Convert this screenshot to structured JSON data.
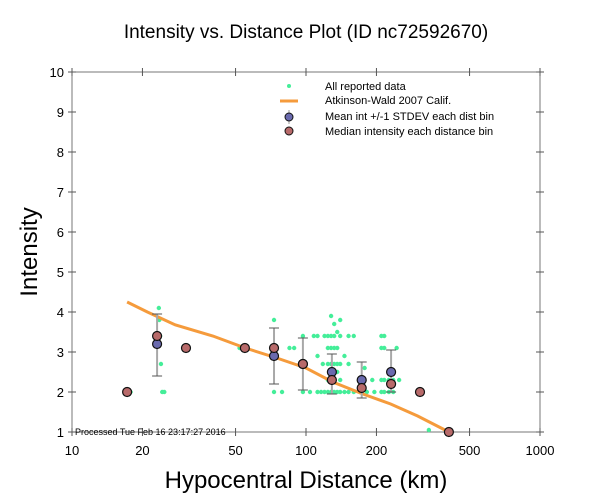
{
  "chart_data": {
    "type": "scatter",
    "title": "Intensity vs. Distance Plot (ID nc72592670)",
    "xlabel": "Hypocentral Distance (km)",
    "ylabel": "Intensity",
    "xscale": "log",
    "xlim": [
      10,
      1000
    ],
    "ylim": [
      1,
      10
    ],
    "xticks": [
      10,
      20,
      50,
      100,
      200,
      500,
      1000
    ],
    "xtick_labels": [
      "10",
      "20",
      "50",
      "100",
      "200",
      "500",
      "1000"
    ],
    "yticks": [
      1,
      2,
      3,
      4,
      5,
      6,
      7,
      8,
      9,
      10
    ],
    "ytick_labels": [
      "1",
      "2",
      "3",
      "4",
      "5",
      "6",
      "7",
      "8",
      "9",
      "10"
    ],
    "grid": false,
    "legend_position": "top-right",
    "annotation": "Processed Tue Feb 16 23:17:27 2016",
    "colors": {
      "all_data": "#44ee99",
      "model": "#f59b3c",
      "mean": "#6a6aae",
      "median": "#b86a6a",
      "errorbar": "#a8a8a8"
    },
    "series": [
      {
        "name": "All reported data",
        "kind": "points",
        "points": [
          [
            17.8,
            2.0
          ],
          [
            23.5,
            4.1
          ],
          [
            23.6,
            3.8
          ],
          [
            23.8,
            3.4
          ],
          [
            24.0,
            2.7
          ],
          [
            24.3,
            2.0
          ],
          [
            24.8,
            2.0
          ],
          [
            52,
            3.1
          ],
          [
            54,
            3.1
          ],
          [
            73,
            3.8
          ],
          [
            73,
            2.0
          ],
          [
            79,
            2.0
          ],
          [
            85,
            3.1
          ],
          [
            89,
            3.1
          ],
          [
            97,
            3.4
          ],
          [
            97,
            2.0
          ],
          [
            104,
            2.0
          ],
          [
            108,
            3.4
          ],
          [
            112,
            3.4
          ],
          [
            112,
            2.9
          ],
          [
            112,
            2.0
          ],
          [
            116,
            2.0
          ],
          [
            118,
            2.7
          ],
          [
            120,
            2.0
          ],
          [
            120,
            3.4
          ],
          [
            124,
            3.4
          ],
          [
            124,
            3.1
          ],
          [
            124,
            2.7
          ],
          [
            124,
            2.3
          ],
          [
            124,
            2.0
          ],
          [
            128,
            3.9
          ],
          [
            128,
            3.4
          ],
          [
            128,
            3.1
          ],
          [
            128,
            2.7
          ],
          [
            128,
            2.5
          ],
          [
            128,
            2.3
          ],
          [
            128,
            2.0
          ],
          [
            132,
            3.7
          ],
          [
            132,
            3.4
          ],
          [
            132,
            3.1
          ],
          [
            132,
            2.7
          ],
          [
            132,
            2.3
          ],
          [
            132,
            2.0
          ],
          [
            136,
            3.5
          ],
          [
            136,
            3.1
          ],
          [
            136,
            2.7
          ],
          [
            136,
            2.5
          ],
          [
            136,
            2.0
          ],
          [
            140,
            3.8
          ],
          [
            140,
            3.4
          ],
          [
            140,
            2.7
          ],
          [
            140,
            2.3
          ],
          [
            140,
            2.0
          ],
          [
            146,
            2.9
          ],
          [
            146,
            2.0
          ],
          [
            152,
            3.4
          ],
          [
            152,
            2.7
          ],
          [
            152,
            2.0
          ],
          [
            160,
            3.4
          ],
          [
            160,
            2.0
          ],
          [
            170,
            2.0
          ],
          [
            178,
            2.6
          ],
          [
            182,
            2.0
          ],
          [
            192,
            2.3
          ],
          [
            196,
            2.0
          ],
          [
            210,
            3.4
          ],
          [
            210,
            3.1
          ],
          [
            210,
            2.3
          ],
          [
            210,
            2.0
          ],
          [
            216,
            3.4
          ],
          [
            216,
            3.1
          ],
          [
            216,
            2.3
          ],
          [
            216,
            2.0
          ],
          [
            226,
            2.3
          ],
          [
            226,
            2.0
          ],
          [
            236,
            2.3
          ],
          [
            236,
            2.0
          ],
          [
            244,
            3.1
          ],
          [
            250,
            2.3
          ],
          [
            335,
            1.05
          ]
        ]
      },
      {
        "name": "Atkinson-Wald 2007 Calif.",
        "kind": "line",
        "points": [
          [
            17.2,
            4.25
          ],
          [
            21,
            4.0
          ],
          [
            27.6,
            3.68
          ],
          [
            40,
            3.4
          ],
          [
            55,
            3.1
          ],
          [
            75,
            2.85
          ],
          [
            100,
            2.6
          ],
          [
            130,
            2.25
          ],
          [
            175,
            1.95
          ],
          [
            230,
            1.7
          ],
          [
            300,
            1.4
          ],
          [
            408,
            1.0
          ]
        ]
      },
      {
        "name": "Mean int +/-1 STDEV each dist bin",
        "kind": "errorbar",
        "points": [
          {
            "x": 23.1,
            "y": 3.2,
            "lo": 2.4,
            "hi": 3.95
          },
          {
            "x": 73,
            "y": 2.9,
            "lo": 2.2,
            "hi": 3.6
          },
          {
            "x": 97,
            "y": 2.7,
            "lo": 2.05,
            "hi": 3.35
          },
          {
            "x": 129,
            "y": 2.5,
            "lo": 1.95,
            "hi": 2.95
          },
          {
            "x": 173,
            "y": 2.3,
            "lo": 1.85,
            "hi": 2.75
          },
          {
            "x": 231,
            "y": 2.5,
            "lo": 2.0,
            "hi": 3.05
          }
        ]
      },
      {
        "name": "Median intensity each distance bin",
        "kind": "points",
        "points": [
          [
            17.2,
            2.0
          ],
          [
            23.1,
            3.4
          ],
          [
            30.7,
            3.1
          ],
          [
            54.8,
            3.1
          ],
          [
            73,
            3.1
          ],
          [
            97,
            2.7
          ],
          [
            129,
            2.3
          ],
          [
            173,
            2.1
          ],
          [
            231,
            2.2
          ],
          [
            307,
            2.0
          ],
          [
            408,
            1.0
          ]
        ]
      }
    ]
  }
}
